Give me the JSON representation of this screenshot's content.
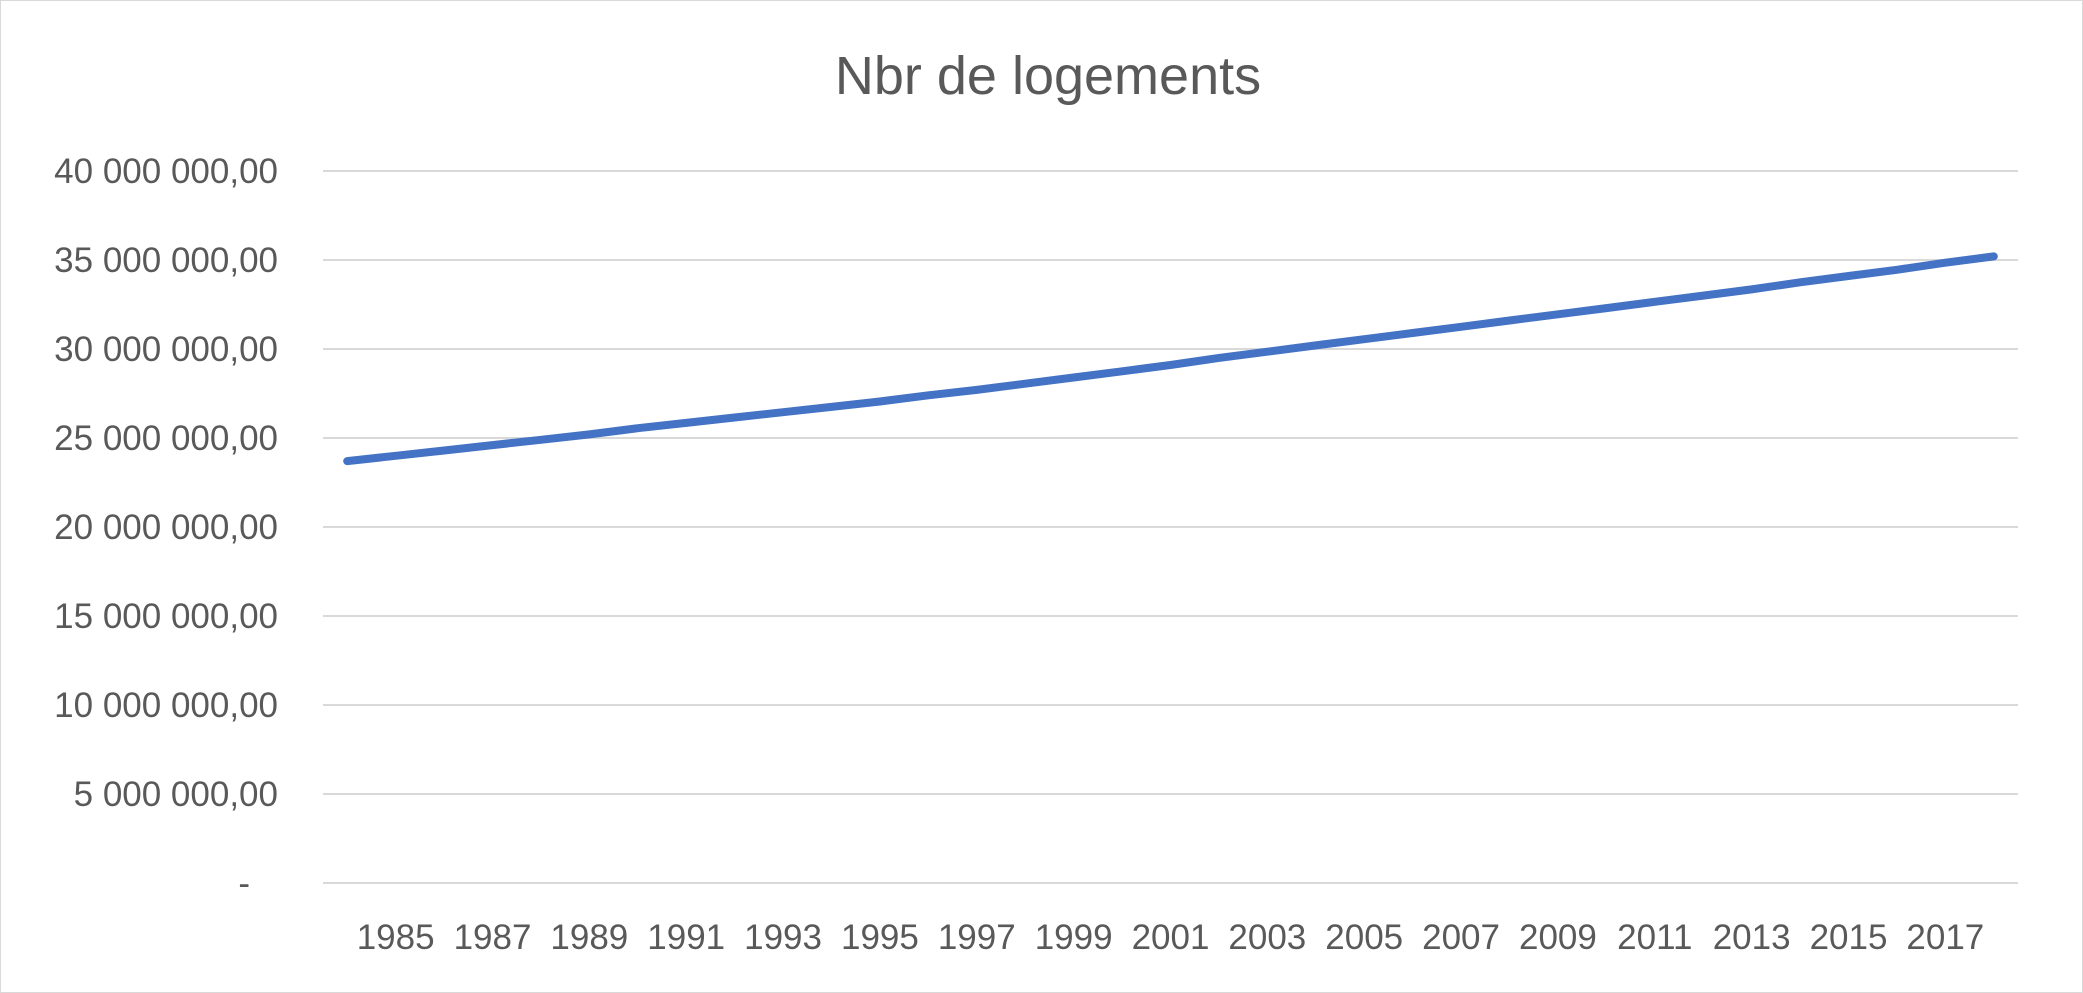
{
  "chart_data": {
    "type": "line",
    "title": "Nbr de logements",
    "xlabel": "",
    "ylabel": "",
    "x": [
      1984,
      1985,
      1986,
      1987,
      1988,
      1989,
      1990,
      1991,
      1992,
      1993,
      1994,
      1995,
      1996,
      1997,
      1998,
      1999,
      2000,
      2001,
      2002,
      2003,
      2004,
      2005,
      2006,
      2007,
      2008,
      2009,
      2010,
      2011,
      2012,
      2013,
      2014,
      2015,
      2016,
      2017,
      2018
    ],
    "x_tick_labels": [
      "1985",
      "1987",
      "1989",
      "1991",
      "1993",
      "1995",
      "1997",
      "1999",
      "2001",
      "2003",
      "2005",
      "2007",
      "2009",
      "2011",
      "2013",
      "2015",
      "2017"
    ],
    "y_ticks": [
      0,
      5000000,
      10000000,
      15000000,
      20000000,
      25000000,
      30000000,
      35000000,
      40000000
    ],
    "y_tick_labels": [
      "-",
      "5 000 000,00",
      "10 000 000,00",
      "15 000 000,00",
      "20 000 000,00",
      "25 000 000,00",
      "30 000 000,00",
      "35 000 000,00",
      "40 000 000,00"
    ],
    "ylim": [
      0,
      40000000
    ],
    "grid": true,
    "legend": "none",
    "series": [
      {
        "color": "#4472C4",
        "values": [
          23700000,
          24000000,
          24300000,
          24600000,
          24900000,
          25200000,
          25550000,
          25850000,
          26150000,
          26450000,
          26750000,
          27050000,
          27400000,
          27700000,
          28050000,
          28400000,
          28750000,
          29100000,
          29500000,
          29850000,
          30200000,
          30550000,
          30900000,
          31250000,
          31600000,
          31950000,
          32300000,
          32650000,
          33000000,
          33350000,
          33750000,
          34100000,
          34450000,
          34850000,
          35200000
        ]
      }
    ]
  }
}
